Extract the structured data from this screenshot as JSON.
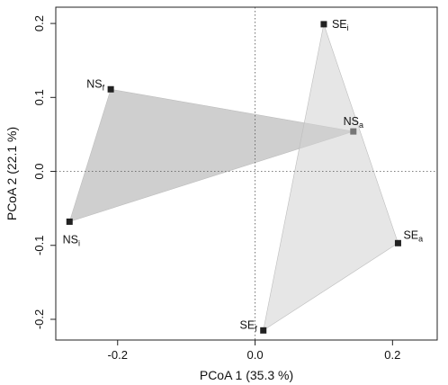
{
  "chart_data": {
    "type": "scatter",
    "title": "",
    "xlabel": "PCoA 1 (35.3 %)",
    "ylabel": "PCoA 2 (22.1 %)",
    "xlim": [
      -0.29,
      0.265
    ],
    "ylim": [
      -0.228,
      0.222
    ],
    "x_ticks": [
      -0.2,
      0.0,
      0.2
    ],
    "x_tick_labels": [
      "-0.2",
      "0.0",
      "0.2"
    ],
    "y_ticks": [
      -0.2,
      -0.1,
      0.0,
      0.1,
      0.2
    ],
    "y_tick_labels": [
      "-0.2",
      "-0.1",
      "0.0",
      "0.1",
      "0.2"
    ],
    "reference_lines": {
      "x": 0.0,
      "y": 0.0,
      "style": "dotted"
    },
    "grid": false,
    "points": [
      {
        "id": "NSf",
        "label": "NS",
        "sub": "f",
        "x": -0.21,
        "y": 0.111,
        "color": "#222222",
        "label_pos": "left"
      },
      {
        "id": "NSi",
        "label": "NS",
        "sub": "i",
        "x": -0.27,
        "y": -0.068,
        "color": "#222222",
        "label_pos": "below"
      },
      {
        "id": "NSa",
        "label": "NS",
        "sub": "a",
        "x": 0.143,
        "y": 0.054,
        "color": "#777777",
        "label_pos": "above-left"
      },
      {
        "id": "SEi",
        "label": "SE",
        "sub": "i",
        "x": 0.1,
        "y": 0.199,
        "color": "#222222",
        "label_pos": "right"
      },
      {
        "id": "SEa",
        "label": "SE",
        "sub": "a",
        "x": 0.208,
        "y": -0.097,
        "color": "#222222",
        "label_pos": "above-right"
      },
      {
        "id": "SEf",
        "label": "SE",
        "sub": "f",
        "x": 0.012,
        "y": -0.215,
        "color": "#222222",
        "label_pos": "left"
      }
    ],
    "hulls": [
      {
        "group": "NS",
        "vertices": [
          "NSf",
          "NSi",
          "NSa"
        ],
        "fill": "#b5b5b5",
        "opacity": 0.65
      },
      {
        "group": "SE",
        "vertices": [
          "SEi",
          "SEa",
          "SEf"
        ],
        "fill": "#d2d2d2",
        "opacity": 0.55
      }
    ]
  }
}
